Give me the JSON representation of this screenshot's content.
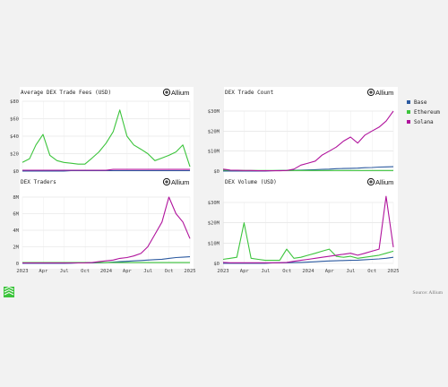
{
  "brand": "Allium",
  "source": "Source: Allium",
  "colors": {
    "Base": "#2c5aa0",
    "Ethereum": "#3cc43c",
    "Solana": "#b0139c"
  },
  "legend": [
    "Base",
    "Ethereum",
    "Solana"
  ],
  "x_ticks": [
    "2023",
    "Apr",
    "Jul",
    "Oct",
    "2024",
    "Apr",
    "Jul",
    "Oct",
    "2025"
  ],
  "chart_data": [
    {
      "type": "line",
      "title": "Average DEX Trade Fees (USD)",
      "ylim": [
        0,
        80
      ],
      "y_ticks": [
        "$0",
        "$20",
        "$40",
        "$60",
        "$80"
      ],
      "x": [
        "2023-01",
        "2023-02",
        "2023-03",
        "2023-04",
        "2023-05",
        "2023-06",
        "2023-07",
        "2023-08",
        "2023-09",
        "2023-10",
        "2023-11",
        "2023-12",
        "2024-01",
        "2024-02",
        "2024-03",
        "2024-04",
        "2024-05",
        "2024-06",
        "2024-07",
        "2024-08",
        "2024-09",
        "2024-10",
        "2024-11",
        "2024-12",
        "2025-01"
      ],
      "series": [
        {
          "name": "Base",
          "values": [
            0,
            0,
            0,
            0,
            0,
            0,
            0,
            0.5,
            0.5,
            0.5,
            0.5,
            0.5,
            0.5,
            0.5,
            0.5,
            0.5,
            0.5,
            0.5,
            0.5,
            0.5,
            0.5,
            0.5,
            0.5,
            0.5,
            0.5
          ]
        },
        {
          "name": "Ethereum",
          "values": [
            10,
            14,
            30,
            42,
            18,
            12,
            10,
            9,
            8,
            8,
            15,
            22,
            32,
            45,
            70,
            40,
            30,
            25,
            20,
            12,
            15,
            18,
            22,
            30,
            5
          ]
        },
        {
          "name": "Solana",
          "values": [
            1,
            1,
            1,
            1,
            1,
            1,
            1,
            1,
            1,
            1,
            1,
            1,
            1,
            2,
            2,
            2,
            2,
            2,
            2,
            2,
            2,
            2,
            2,
            2,
            2
          ]
        }
      ]
    },
    {
      "type": "line",
      "title": "DEX Trade Count",
      "ylim": [
        0,
        30000000
      ],
      "y_ticks": [
        "$0",
        "$10M",
        "$20M",
        "$30M"
      ],
      "x": [
        "2023-01",
        "2023-02",
        "2023-03",
        "2023-04",
        "2023-05",
        "2023-06",
        "2023-07",
        "2023-08",
        "2023-09",
        "2023-10",
        "2023-11",
        "2023-12",
        "2024-01",
        "2024-02",
        "2024-03",
        "2024-04",
        "2024-05",
        "2024-06",
        "2024-07",
        "2024-08",
        "2024-09",
        "2024-10",
        "2024-11",
        "2024-12",
        "2025-01"
      ],
      "series": [
        {
          "name": "Base",
          "values": [
            0,
            0,
            0,
            0,
            0,
            0,
            0,
            200000,
            300000,
            300000,
            400000,
            500000,
            600000,
            700000,
            900000,
            1000000,
            1200000,
            1300000,
            1400000,
            1500000,
            1700000,
            1800000,
            2000000,
            2100000,
            2200000
          ]
        },
        {
          "name": "Ethereum",
          "values": [
            500000,
            400000,
            400000,
            300000,
            300000,
            300000,
            300000,
            300000,
            300000,
            300000,
            300000,
            300000,
            300000,
            300000,
            300000,
            300000,
            300000,
            300000,
            300000,
            300000,
            300000,
            300000,
            300000,
            300000,
            300000
          ]
        },
        {
          "name": "Solana",
          "values": [
            1000000,
            500000,
            400000,
            300000,
            300000,
            200000,
            200000,
            200000,
            200000,
            300000,
            1000000,
            3000000,
            4000000,
            5000000,
            8000000,
            10000000,
            12000000,
            15000000,
            17000000,
            14000000,
            18000000,
            20000000,
            22000000,
            25000000,
            30000000
          ]
        }
      ]
    },
    {
      "type": "line",
      "title": "DEX Traders",
      "ylim": [
        0,
        8000000
      ],
      "y_ticks": [
        "0",
        "2M",
        "4M",
        "6M",
        "8M"
      ],
      "x": [
        "2023-01",
        "2023-02",
        "2023-03",
        "2023-04",
        "2023-05",
        "2023-06",
        "2023-07",
        "2023-08",
        "2023-09",
        "2023-10",
        "2023-11",
        "2023-12",
        "2024-01",
        "2024-02",
        "2024-03",
        "2024-04",
        "2024-05",
        "2024-06",
        "2024-07",
        "2024-08",
        "2024-09",
        "2024-10",
        "2024-11",
        "2024-12",
        "2025-01"
      ],
      "series": [
        {
          "name": "Base",
          "values": [
            0,
            0,
            0,
            0,
            0,
            0,
            0,
            20000,
            50000,
            50000,
            60000,
            80000,
            100000,
            150000,
            200000,
            250000,
            300000,
            350000,
            400000,
            450000,
            500000,
            600000,
            700000,
            750000,
            800000
          ]
        },
        {
          "name": "Ethereum",
          "values": [
            100000,
            100000,
            100000,
            100000,
            100000,
            100000,
            100000,
            100000,
            100000,
            100000,
            100000,
            100000,
            100000,
            100000,
            100000,
            100000,
            100000,
            100000,
            100000,
            100000,
            100000,
            100000,
            100000,
            100000,
            100000
          ]
        },
        {
          "name": "Solana",
          "values": [
            50000,
            50000,
            50000,
            50000,
            50000,
            50000,
            50000,
            50000,
            50000,
            60000,
            100000,
            200000,
            300000,
            400000,
            600000,
            700000,
            900000,
            1200000,
            2000000,
            3500000,
            5000000,
            8000000,
            6000000,
            5000000,
            3000000
          ]
        }
      ]
    },
    {
      "type": "line",
      "title": "DEX Volume (USD)",
      "ylim": [
        0,
        30000000
      ],
      "y_ticks": [
        "$0",
        "$10M",
        "$20M",
        "$30M"
      ],
      "x": [
        "2023-01",
        "2023-02",
        "2023-03",
        "2023-04",
        "2023-05",
        "2023-06",
        "2023-07",
        "2023-08",
        "2023-09",
        "2023-10",
        "2023-11",
        "2023-12",
        "2024-01",
        "2024-02",
        "2024-03",
        "2024-04",
        "2024-05",
        "2024-06",
        "2024-07",
        "2024-08",
        "2024-09",
        "2024-10",
        "2024-11",
        "2024-12",
        "2025-01"
      ],
      "series": [
        {
          "name": "Base",
          "values": [
            0,
            0,
            0,
            0,
            0,
            0,
            0,
            200000,
            300000,
            300000,
            400000,
            500000,
            600000,
            800000,
            1000000,
            1200000,
            1300000,
            1400000,
            1500000,
            1600000,
            1800000,
            2000000,
            2200000,
            2500000,
            3000000
          ]
        },
        {
          "name": "Ethereum",
          "values": [
            2000000,
            2500000,
            3000000,
            20000000,
            2500000,
            2000000,
            1500000,
            1500000,
            1500000,
            7000000,
            2500000,
            3000000,
            4000000,
            5000000,
            6000000,
            7000000,
            3500000,
            3000000,
            3500000,
            2500000,
            3000000,
            3500000,
            4000000,
            5000000,
            6000000
          ]
        },
        {
          "name": "Solana",
          "values": [
            500000,
            300000,
            300000,
            300000,
            300000,
            300000,
            300000,
            300000,
            300000,
            500000,
            1000000,
            1500000,
            2000000,
            2500000,
            3000000,
            3500000,
            4000000,
            4500000,
            5000000,
            4000000,
            5000000,
            6000000,
            7000000,
            33000000,
            8000000
          ]
        }
      ]
    }
  ]
}
